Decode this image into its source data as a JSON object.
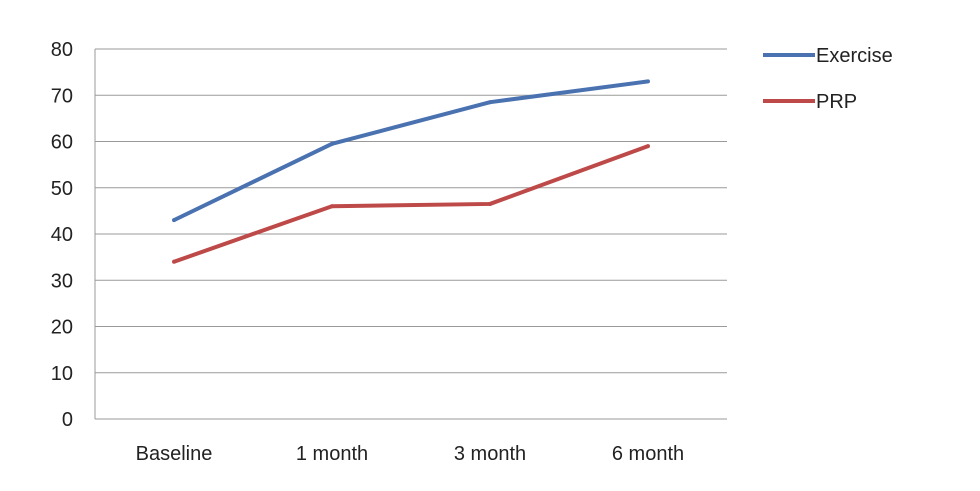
{
  "chart_data": {
    "type": "line",
    "title": "",
    "xlabel": "",
    "ylabel": "",
    "categories": [
      "Baseline",
      "1 month",
      "3 month",
      "6 month"
    ],
    "ylim": [
      0,
      80
    ],
    "yticks": [
      0,
      10,
      20,
      30,
      40,
      50,
      60,
      70,
      80
    ],
    "grid": true,
    "legend_position": "right",
    "series": [
      {
        "name": "Exercise",
        "color": "#4a72b0",
        "values": [
          43,
          59.5,
          68.5,
          73
        ]
      },
      {
        "name": "PRP",
        "color": "#bd4a48",
        "values": [
          34,
          46,
          46.5,
          59
        ]
      }
    ]
  }
}
